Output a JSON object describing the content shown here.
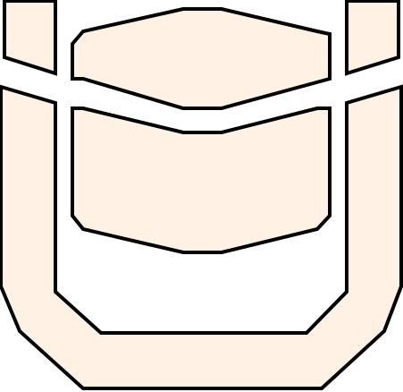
{
  "figure": {
    "background": "#ffffff",
    "fill": "#fff1e4",
    "stroke": "#000000",
    "shapes": [
      {
        "name": "top-left-block-shape"
      },
      {
        "name": "top-right-block-shape"
      },
      {
        "name": "upper-center-panel-shape"
      },
      {
        "name": "lower-center-panel-shape"
      },
      {
        "name": "outer-u-frame-shape"
      }
    ]
  }
}
